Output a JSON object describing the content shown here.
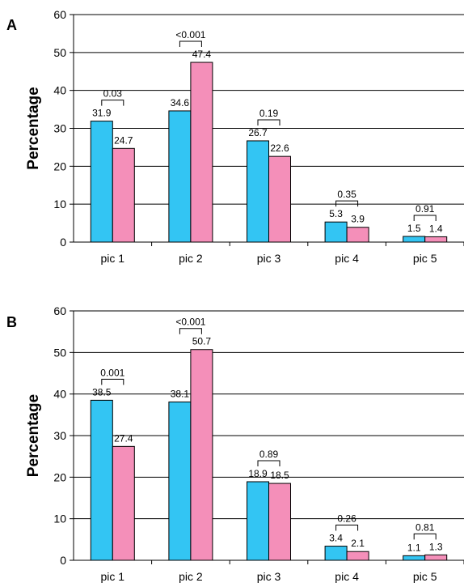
{
  "chart_data": [
    {
      "panel": "A",
      "type": "bar",
      "ylabel": "Percentage",
      "ylim": [
        0,
        60
      ],
      "yticks": [
        "0",
        "10",
        "20",
        "30",
        "40",
        "50",
        "60"
      ],
      "grid": true,
      "categories": [
        "pic 1",
        "pic 2",
        "pic 3",
        "pic 4",
        "pic 5"
      ],
      "series": [
        {
          "values": [
            31.9,
            34.6,
            26.7,
            5.3,
            1.5
          ],
          "labels": [
            "31.9",
            "34.6",
            "26.7",
            "5.3",
            "1.5"
          ],
          "color": "#33c5f3"
        },
        {
          "values": [
            24.7,
            47.4,
            22.6,
            3.9,
            1.4
          ],
          "labels": [
            "24.7",
            "47.4",
            "22.6",
            "3.9",
            "1.4"
          ],
          "color": "#f48fb9"
        }
      ],
      "p_values": [
        "0.03",
        "<0.001",
        "0.19",
        "0.35",
        "0.91"
      ]
    },
    {
      "panel": "B",
      "type": "bar",
      "ylabel": "Percentage",
      "ylim": [
        0,
        60
      ],
      "yticks": [
        "0",
        "10",
        "20",
        "30",
        "40",
        "50",
        "60"
      ],
      "grid": true,
      "categories": [
        "pic 1",
        "pic 2",
        "pic 3",
        "pic 4",
        "pic 5"
      ],
      "series": [
        {
          "values": [
            38.5,
            38.1,
            18.9,
            3.4,
            1.1
          ],
          "labels": [
            "38.5",
            "38.1",
            "18.9",
            "3.4",
            "1.1"
          ],
          "color": "#33c5f3"
        },
        {
          "values": [
            27.4,
            50.7,
            18.5,
            2.1,
            1.3
          ],
          "labels": [
            "27.4",
            "50.7",
            "18.5",
            "2.1",
            "1.3"
          ],
          "color": "#f48fb9"
        }
      ],
      "p_values": [
        "0.001",
        "<0.001",
        "0.89",
        "0.26",
        "0.81"
      ]
    }
  ]
}
